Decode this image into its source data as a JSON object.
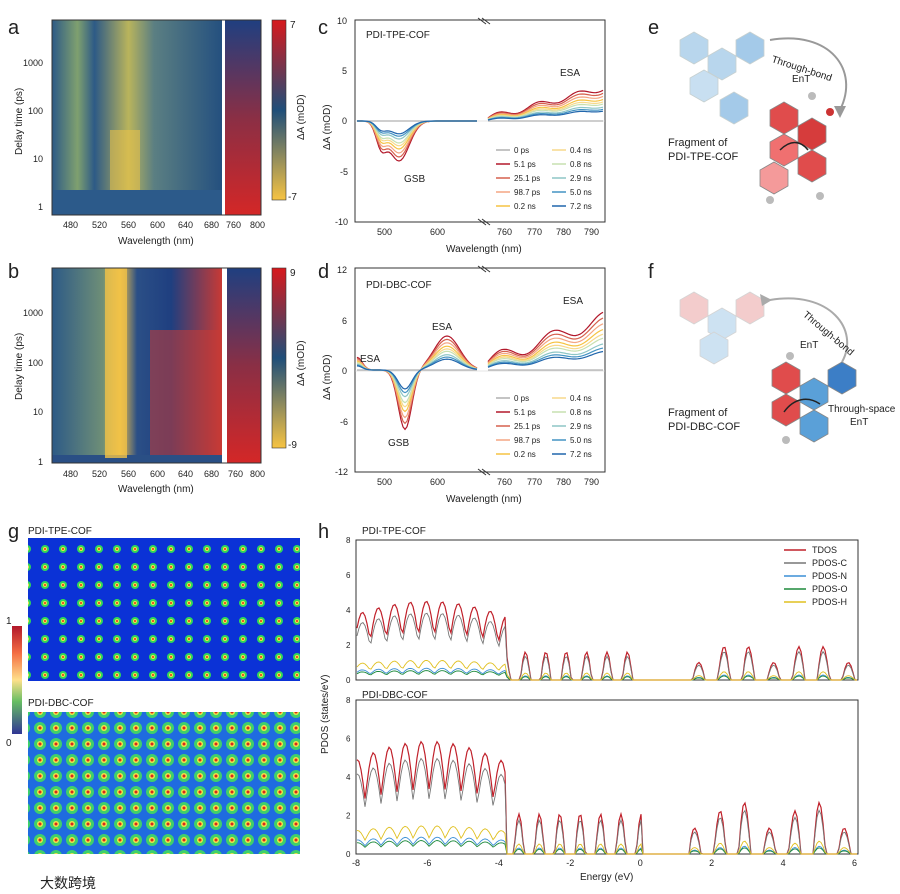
{
  "figure": {
    "panel_letters": [
      "a",
      "b",
      "c",
      "d",
      "e",
      "f",
      "g",
      "h"
    ],
    "watermark": "大数跨境"
  },
  "chart_data": [
    {
      "id": "a",
      "type": "heatmap",
      "xlabel": "Wavelength (nm)",
      "ylabel": "Delay time (ps)",
      "xticks_left": [
        "480",
        "520",
        "560",
        "600",
        "640",
        "680"
      ],
      "xticks_right": [
        "760",
        "800"
      ],
      "yticks": [
        "1",
        "10",
        "100",
        "1000"
      ],
      "colorbar_label": "ΔA (mOD)",
      "colorbar_max": "7",
      "colorbar_min": "-7",
      "colors": {
        "pos": "#d7191c",
        "neg": "#f6c343",
        "mid": "#1f4e79"
      }
    },
    {
      "id": "b",
      "type": "heatmap",
      "xlabel": "Wavelength (nm)",
      "ylabel": "Delay time (ps)",
      "xticks_left": [
        "480",
        "520",
        "560",
        "600",
        "640",
        "680"
      ],
      "xticks_right": [
        "760",
        "800"
      ],
      "yticks": [
        "1",
        "10",
        "100",
        "1000"
      ],
      "colorbar_label": "ΔA (mOD)",
      "colorbar_max": "9",
      "colorbar_min": "-9"
    },
    {
      "id": "c",
      "type": "line",
      "title": "PDI-TPE-COF",
      "xlabel": "Wavelength (nm)",
      "ylabel": "ΔA (mOD)",
      "xticks_left": [
        "500",
        "600"
      ],
      "xticks_right": [
        "760",
        "770",
        "780",
        "790"
      ],
      "yticks": [
        "10",
        "5",
        "0",
        "-5",
        "-10"
      ],
      "ylim": [
        -10,
        10
      ],
      "annotations": [
        "ESA",
        "GSB"
      ],
      "legend": [
        "0 ps",
        "5.1 ps",
        "25.1 ps",
        "98.7 ps",
        "0.2 ns",
        "0.4 ns",
        "0.8 ns",
        "2.9 ns",
        "5.0 ns",
        "7.2 ns"
      ],
      "series_colors": [
        "#b0b0b0",
        "#b2182b",
        "#d6604d",
        "#f4a582",
        "#f6c343",
        "#f7d98a",
        "#c7e0b0",
        "#8ec6c5",
        "#4393c3",
        "#2166ac"
      ],
      "series_amp": [
        0,
        1.0,
        0.9,
        0.8,
        0.7,
        0.62,
        0.55,
        0.45,
        0.38,
        0.32
      ]
    },
    {
      "id": "d",
      "type": "line",
      "title": "PDI-DBC-COF",
      "xlabel": "Wavelength (nm)",
      "ylabel": "ΔA (mOD)",
      "xticks_left": [
        "500",
        "600"
      ],
      "xticks_right": [
        "760",
        "770",
        "780",
        "790"
      ],
      "yticks": [
        "12",
        "6",
        "0",
        "-6",
        "-12"
      ],
      "ylim": [
        -12,
        12
      ],
      "annotations": [
        "ESA",
        "ESA",
        "GSB"
      ],
      "legend": [
        "0 ps",
        "5.1 ps",
        "25.1 ps",
        "98.7 ps",
        "0.2 ns",
        "0.4 ns",
        "0.8 ns",
        "2.9 ns",
        "5.0 ns",
        "7.2 ns"
      ]
    },
    {
      "id": "h",
      "type": "line",
      "titles": [
        "PDI-TPE-COF",
        "PDI-DBC-COF"
      ],
      "xlabel": "Energy (eV)",
      "ylabel": "PDOS (states/eV)",
      "xlim": [
        -8,
        6
      ],
      "xticks": [
        "-8",
        "-6",
        "-4",
        "-2",
        "0",
        "2",
        "4",
        "6"
      ],
      "yticks": [
        "0",
        "2",
        "4",
        "6",
        "8"
      ],
      "ylim": [
        0,
        8
      ],
      "legend": [
        "TDOS",
        "PDOS-C",
        "PDOS-N",
        "PDOS-O",
        "PDOS-H"
      ],
      "legend_colors": [
        "#c0202a",
        "#777777",
        "#3c8fd6",
        "#1e8a3c",
        "#e0c020"
      ]
    }
  ],
  "panel_e": {
    "label": "Fragment of\nPDI-TPE-COF",
    "label_line1": "Fragment of",
    "label_line2": "PDI-TPE-COF",
    "arrow_text": "Through-bond",
    "arrow_text2": "EnT"
  },
  "panel_f": {
    "label_line1": "Fragment of",
    "label_line2": "PDI-DBC-COF",
    "arrow_text": "Through-bond",
    "arrow_text2": "EnT",
    "space_text": "Through-space",
    "space_text2": "EnT"
  },
  "panel_g": {
    "title_top": "PDI-TPE-COF",
    "title_bottom": "PDI-DBC-COF",
    "colorbar_max": "1",
    "colorbar_min": "0"
  }
}
